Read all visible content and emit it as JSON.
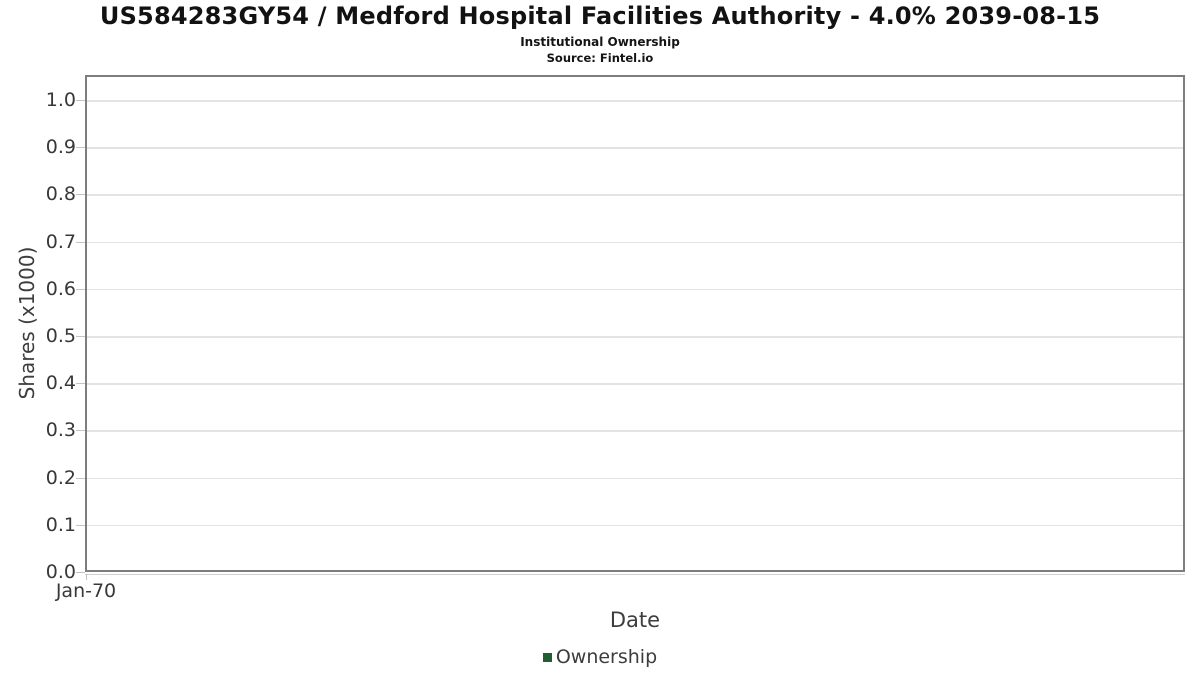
{
  "chart_data": {
    "type": "line",
    "title": "US584283GY54 / Medford Hospital Facilities Authority - 4.0% 2039-08-15",
    "subtitle": "Institutional Ownership",
    "source": "Source: Fintel.io",
    "xlabel": "Date",
    "ylabel": "Shares (x1000)",
    "x_tick_labels": [
      "Jan-70"
    ],
    "y_tick_labels": [
      "0.0",
      "0.1",
      "0.2",
      "0.3",
      "0.4",
      "0.5",
      "0.6",
      "0.7",
      "0.8",
      "0.9",
      "1.0"
    ],
    "y_tick_values": [
      0.0,
      0.1,
      0.2,
      0.3,
      0.4,
      0.5,
      0.6,
      0.7,
      0.8,
      0.9,
      1.0
    ],
    "ylim": [
      0.0,
      1.05
    ],
    "grid": "horizontal-only",
    "legend_position": "bottom-center",
    "series": [
      {
        "name": "Ownership",
        "color": "#215e32",
        "x": [],
        "values": []
      }
    ],
    "colors": {
      "plot_border": "#7d7d7d",
      "gridline": "#e3e3e3",
      "tick_text": "#383838",
      "axis_title_text": "#3d3d3d",
      "title_text": "#121212",
      "series_ownership": "#215e32"
    }
  }
}
